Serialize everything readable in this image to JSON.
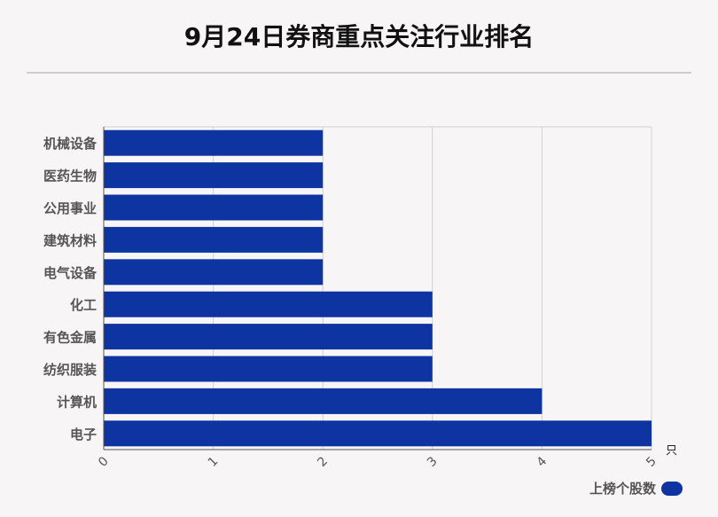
{
  "title": "9月24日券商重点关注行业排名",
  "chart_data": {
    "type": "bar",
    "orientation": "horizontal",
    "categories": [
      "机械设备",
      "医药生物",
      "公用事业",
      "建筑材料",
      "电气设备",
      "化工",
      "有色金属",
      "纺织服装",
      "计算机",
      "电子"
    ],
    "series": [
      {
        "name": "上榜个股数",
        "values": [
          2,
          2,
          2,
          2,
          2,
          3,
          3,
          3,
          4,
          5
        ],
        "color": "#0d34a0"
      }
    ],
    "xlim": [
      0,
      5
    ],
    "x_ticks": [
      "0",
      "1",
      "2",
      "3",
      "4",
      "5"
    ],
    "x_unit": "只",
    "grid": true,
    "legend_position": "bottom-right"
  }
}
